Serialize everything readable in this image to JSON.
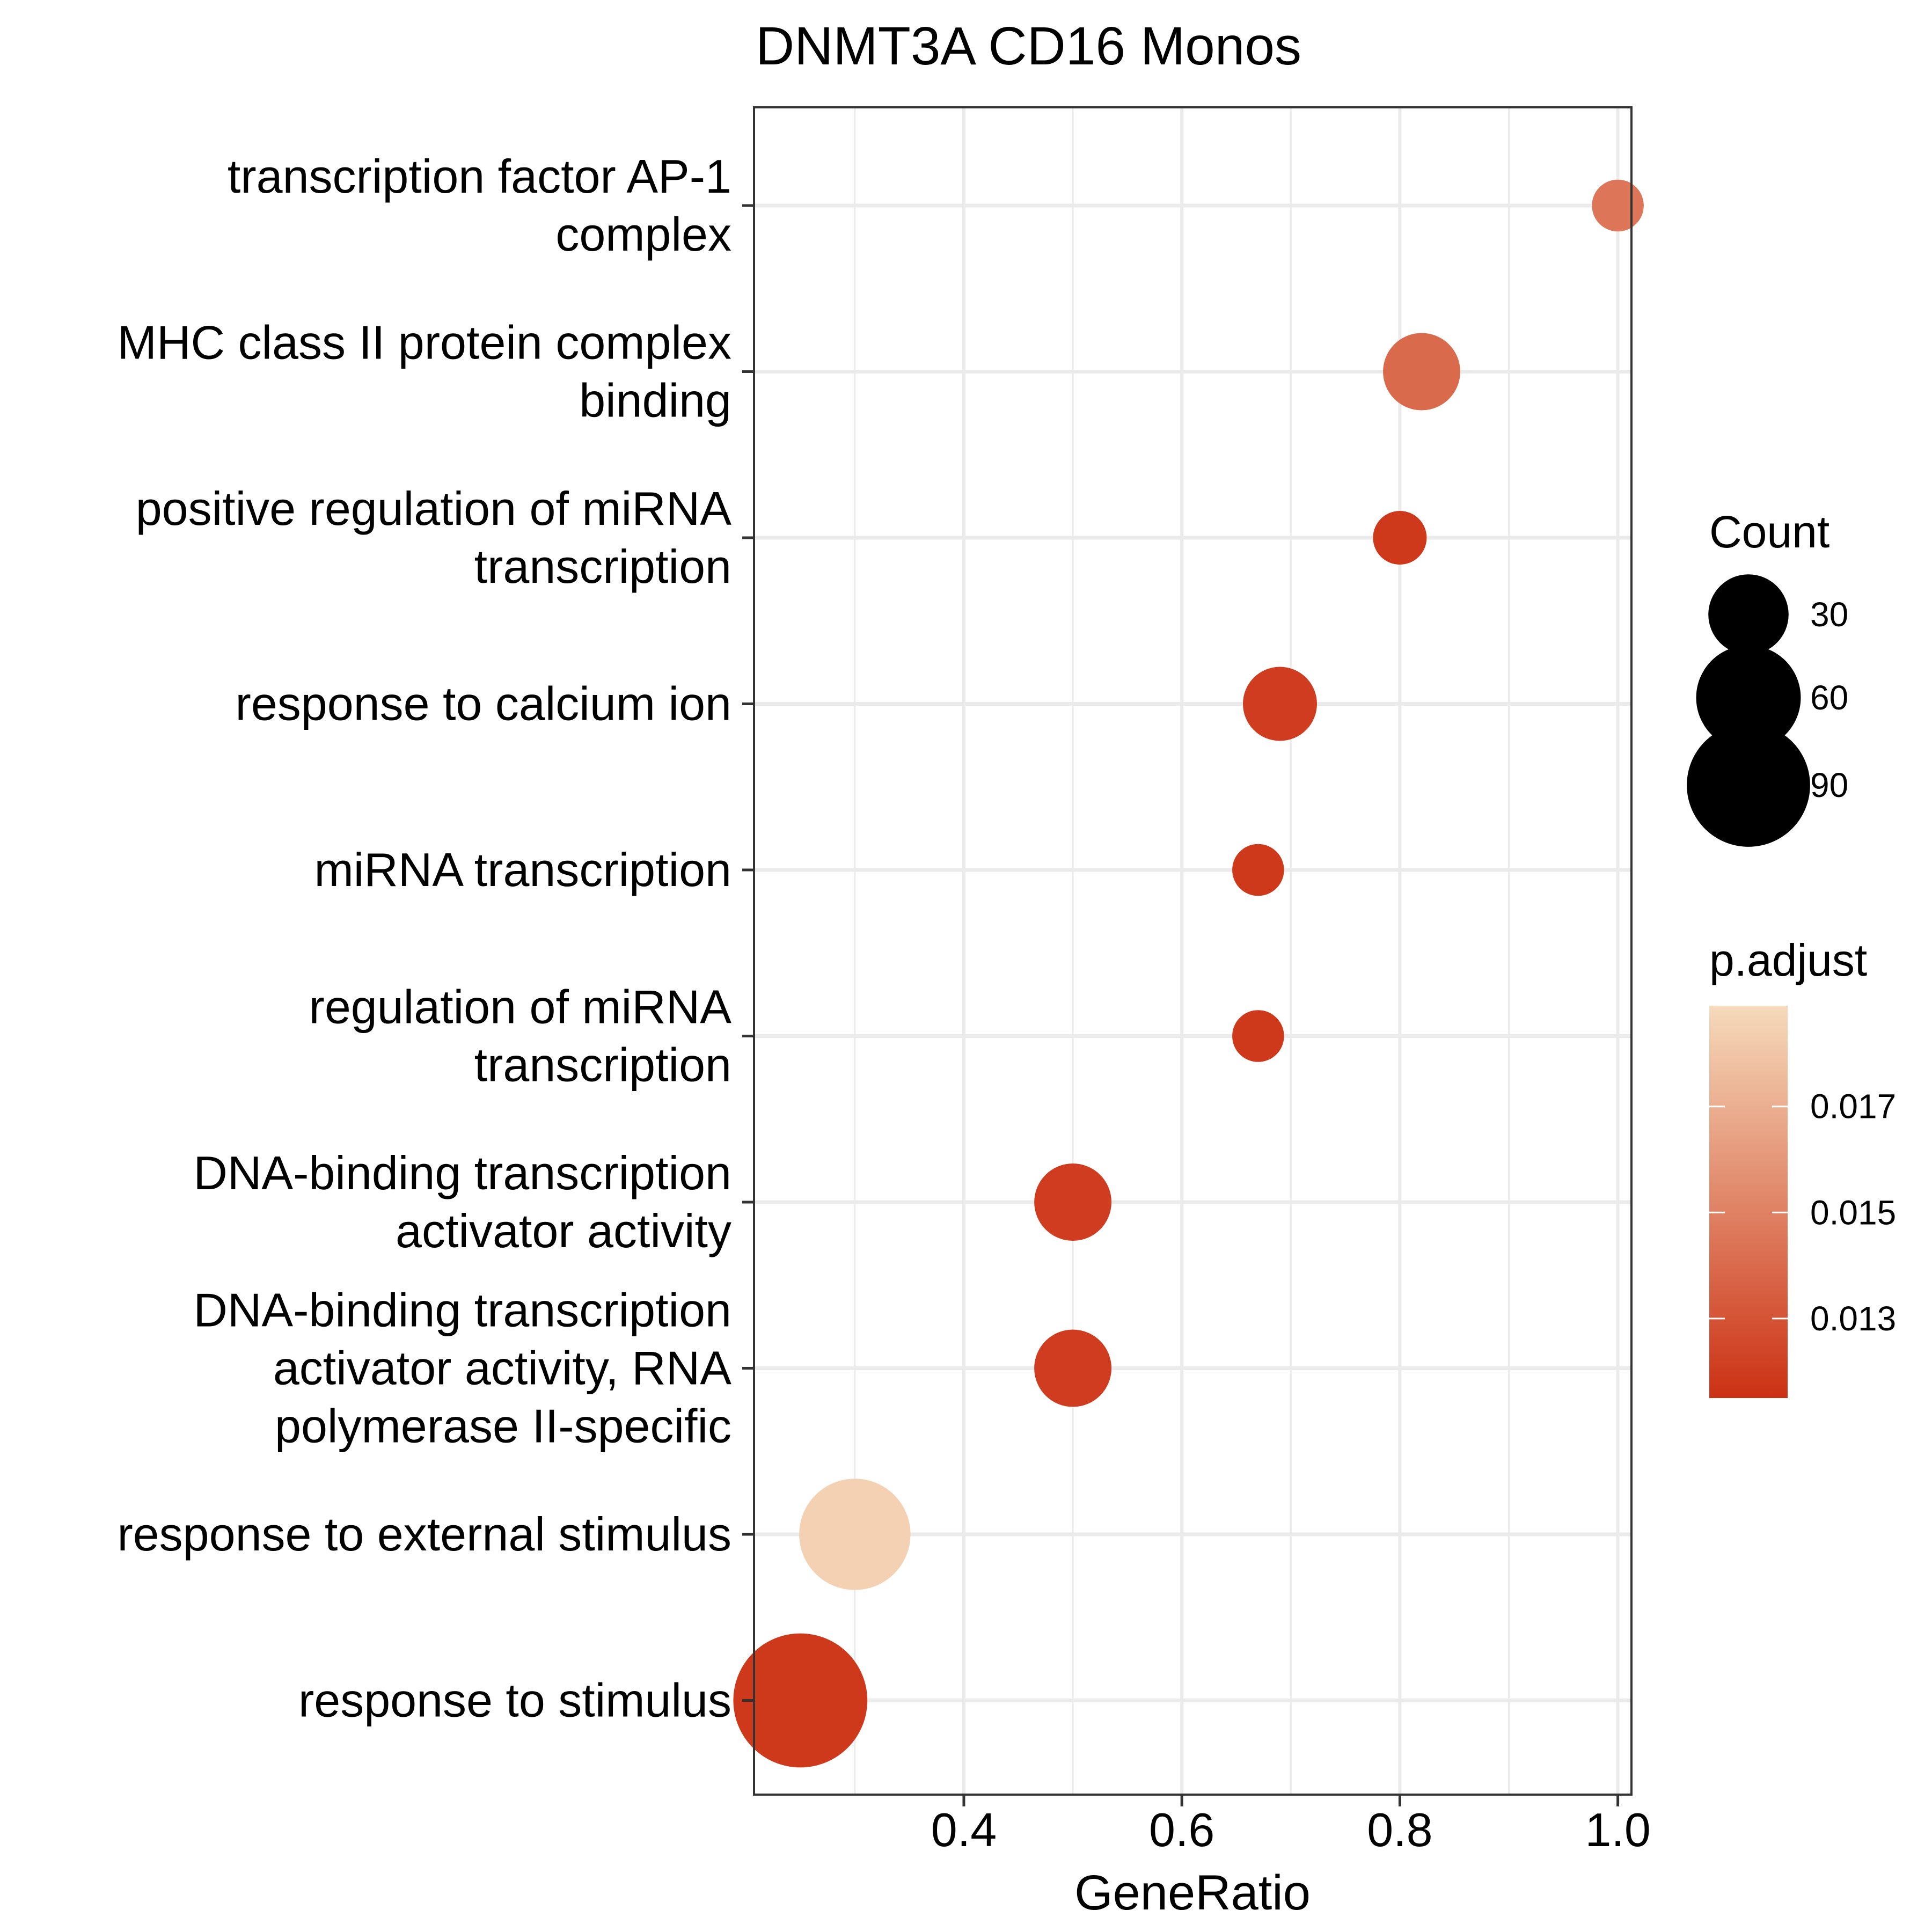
{
  "chart_data": {
    "type": "scatter",
    "title": "DNMT3A CD16 Monos",
    "xlabel": "GeneRatio",
    "ylabel": "",
    "xlim": [
      0.2075,
      1.0125
    ],
    "xticks": [
      0.4,
      0.6,
      0.8,
      1.0
    ],
    "xtick_labels": [
      "0.4",
      "0.6",
      "0.8",
      "1.0"
    ],
    "grid": true,
    "categories": [
      [
        "transcription factor AP-1",
        "complex"
      ],
      [
        "MHC class II protein complex",
        "binding"
      ],
      [
        "positive regulation of miRNA",
        "transcription"
      ],
      [
        "response to calcium ion"
      ],
      [
        "miRNA transcription"
      ],
      [
        "regulation of miRNA",
        "transcription"
      ],
      [
        "DNA-binding transcription",
        "activator activity"
      ],
      [
        "DNA-binding transcription",
        "activator activity, RNA",
        "polymerase II-specific"
      ],
      [
        "response to external stimulus"
      ],
      [
        "response to stimulus"
      ]
    ],
    "points": [
      {
        "gene_ratio": 1.0,
        "count": 8,
        "p_adjust": 0.0145
      },
      {
        "gene_ratio": 0.82,
        "count": 27,
        "p_adjust": 0.014
      },
      {
        "gene_ratio": 0.8,
        "count": 9,
        "p_adjust": 0.0118
      },
      {
        "gene_ratio": 0.69,
        "count": 24,
        "p_adjust": 0.012
      },
      {
        "gene_ratio": 0.67,
        "count": 8,
        "p_adjust": 0.0118
      },
      {
        "gene_ratio": 0.67,
        "count": 8,
        "p_adjust": 0.0118
      },
      {
        "gene_ratio": 0.5,
        "count": 27,
        "p_adjust": 0.012
      },
      {
        "gene_ratio": 0.5,
        "count": 27,
        "p_adjust": 0.012
      },
      {
        "gene_ratio": 0.3,
        "count": 70,
        "p_adjust": 0.0185
      },
      {
        "gene_ratio": 0.25,
        "count": 110,
        "p_adjust": 0.0118
      }
    ],
    "size_legend": {
      "title": "Count",
      "values": [
        30,
        60,
        90
      ],
      "labels": [
        "30",
        "60",
        "90"
      ]
    },
    "color_legend": {
      "title": "p.adjust",
      "range": [
        0.0115,
        0.0189
      ],
      "ticks": [
        0.013,
        0.015,
        0.017
      ],
      "labels": [
        "0.013",
        "0.015",
        "0.017"
      ],
      "low_color": "#cc3114",
      "high_color": "#f5dabb"
    }
  }
}
